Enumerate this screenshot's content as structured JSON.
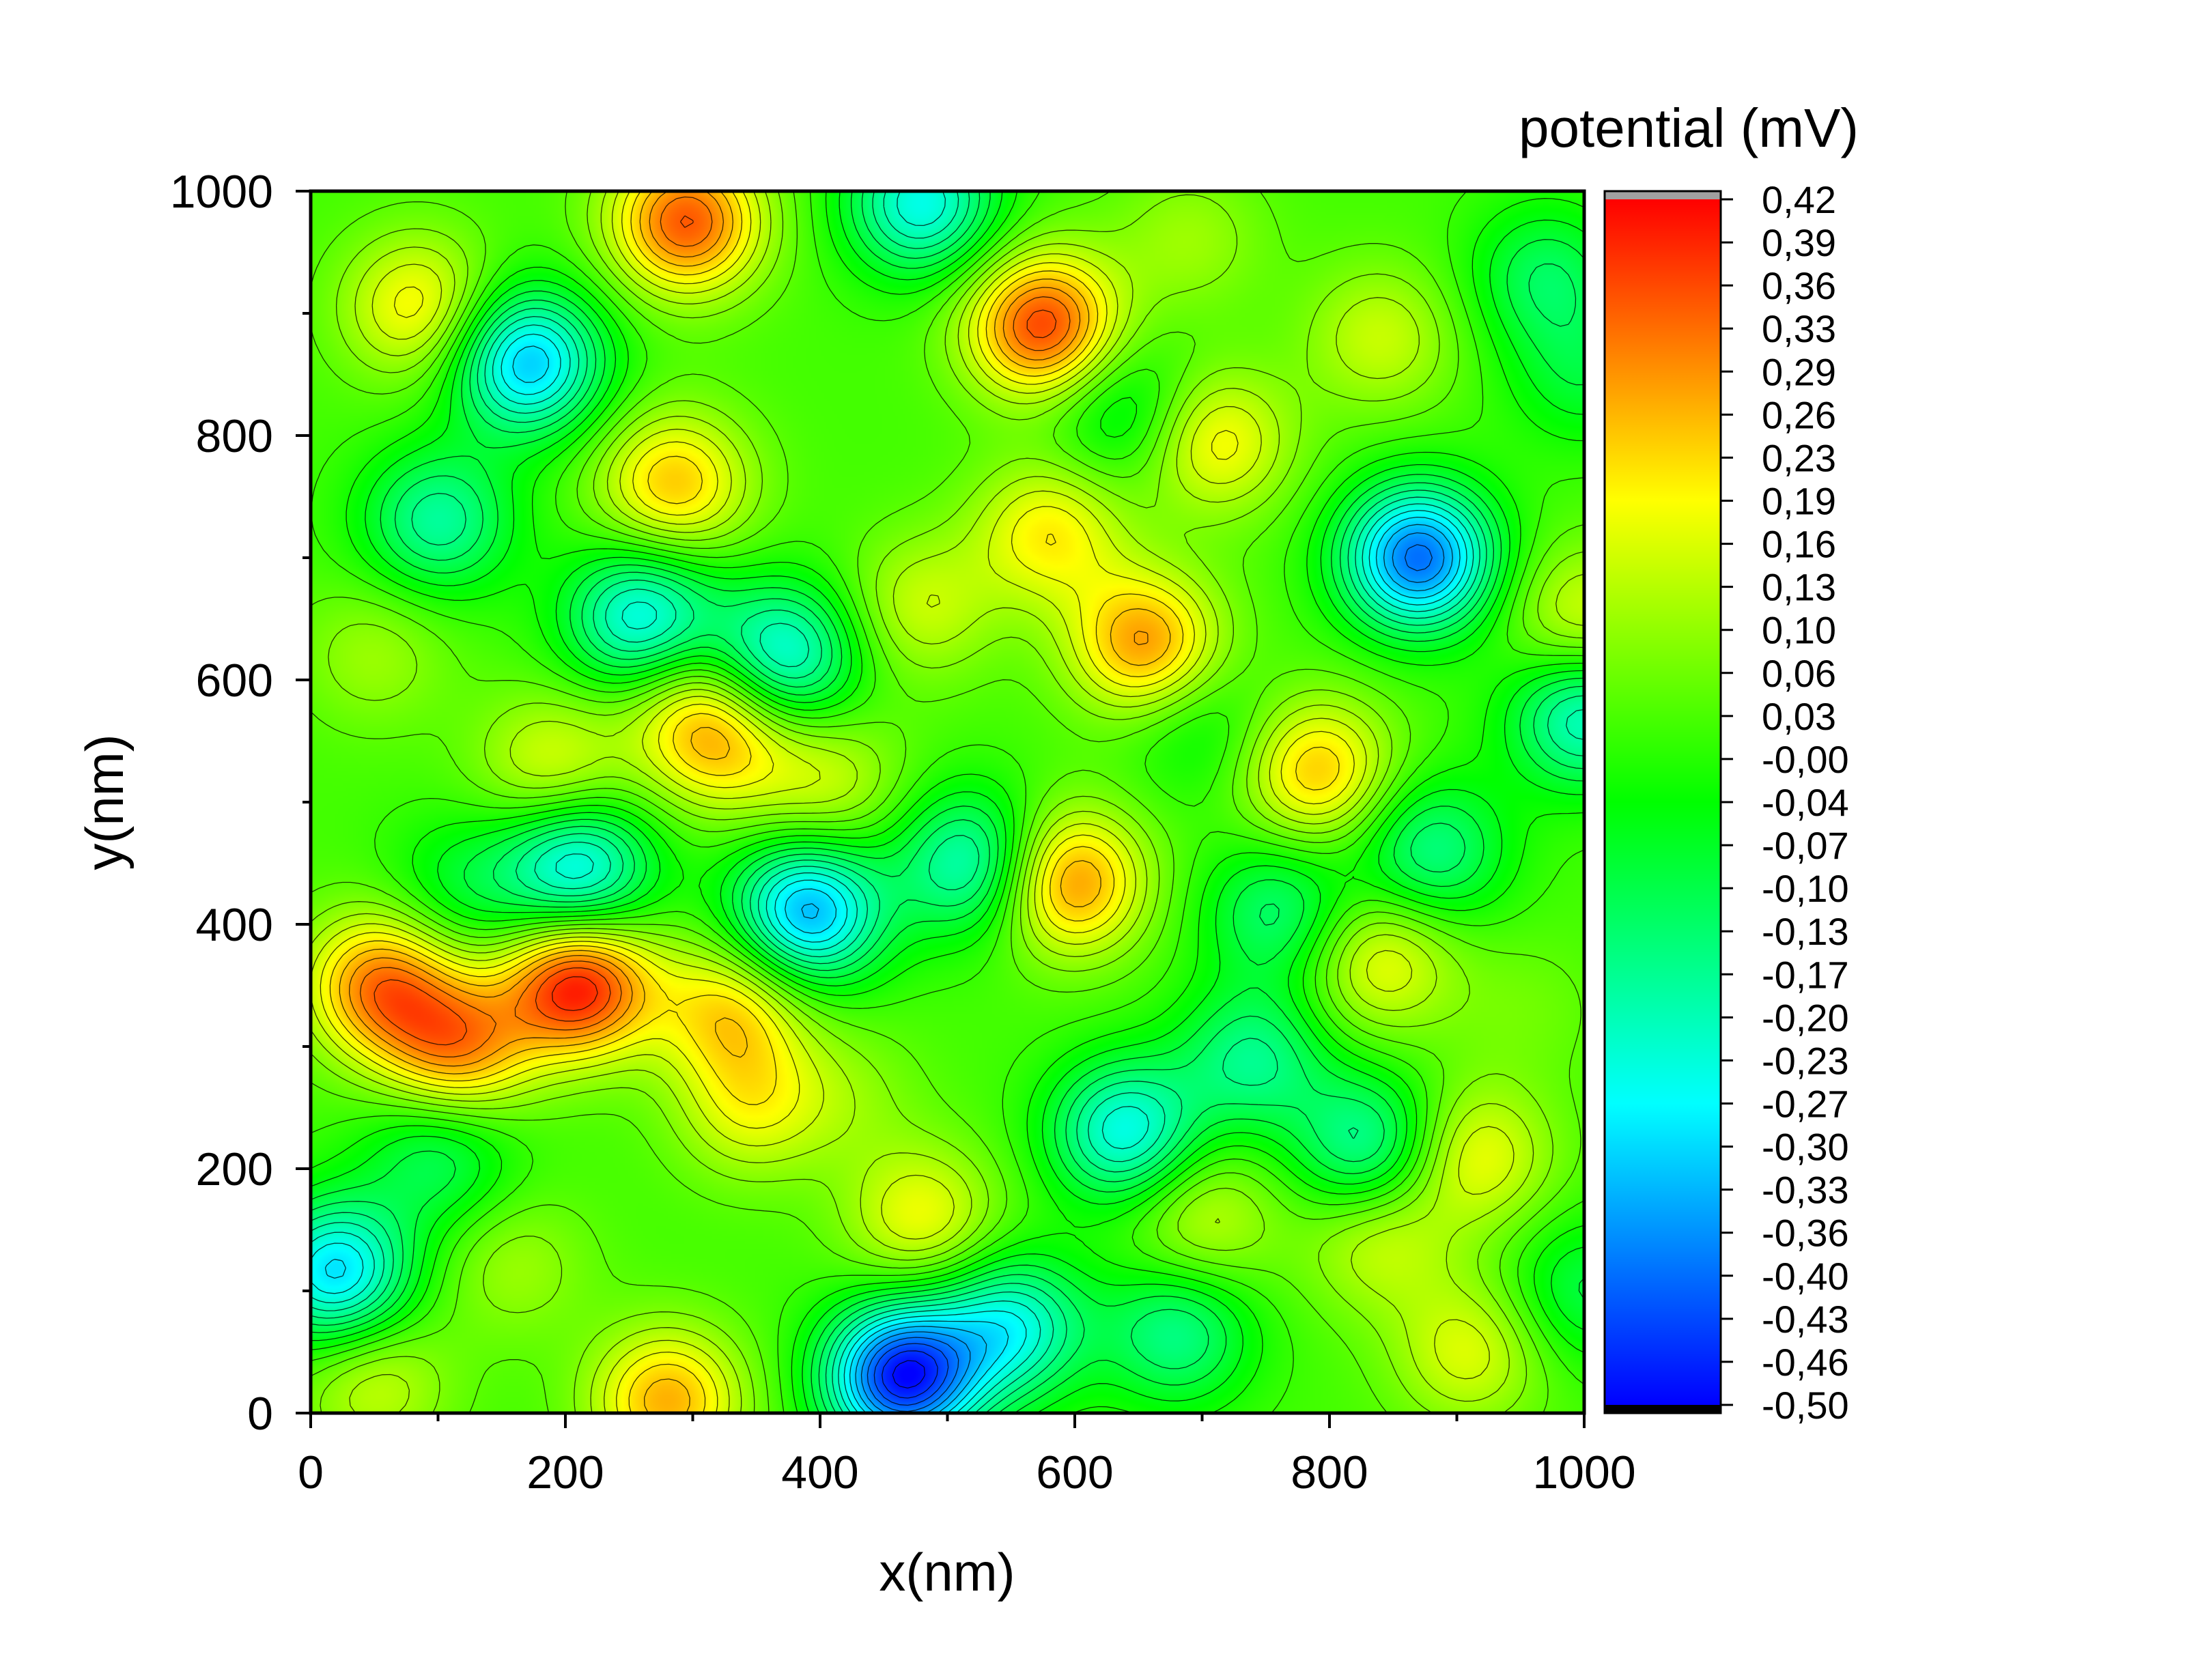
{
  "chart_data": {
    "type": "heatmap",
    "subtype": "contour",
    "xlabel": "x(nm)",
    "ylabel": "y(nm)",
    "xlim": [
      0,
      1000
    ],
    "ylim": [
      0,
      1000
    ],
    "x_ticks": [
      0,
      200,
      400,
      600,
      800,
      1000
    ],
    "y_ticks": [
      0,
      200,
      400,
      600,
      800,
      1000
    ],
    "colorbar": {
      "title": "potential (mV)",
      "range": [
        -0.5,
        0.42
      ],
      "tick_labels": [
        "0,42",
        "0,39",
        "0,36",
        "0,33",
        "0,29",
        "0,26",
        "0,23",
        "0,19",
        "0,16",
        "0,13",
        "0,10",
        "0,06",
        "0,03",
        "-0,00",
        "-0,04",
        "-0,07",
        "-0,10",
        "-0,13",
        "-0,17",
        "-0,20",
        "-0,23",
        "-0,27",
        "-0,30",
        "-0,33",
        "-0,36",
        "-0,40",
        "-0,43",
        "-0,46",
        "-0,50"
      ],
      "colors": [
        "#0000ff",
        "#00ffff",
        "#00ff00",
        "#ffff00",
        "#ff0000"
      ]
    },
    "base_value": 0.02,
    "extrema": [
      {
        "x": 465,
        "y": 30,
        "v": -0.48
      },
      {
        "x": 870,
        "y": 700,
        "v": -0.4
      },
      {
        "x": 170,
        "y": 860,
        "v": -0.32
      },
      {
        "x": 390,
        "y": 410,
        "v": -0.34
      },
      {
        "x": 210,
        "y": 445,
        "v": -0.27
      },
      {
        "x": 260,
        "y": 650,
        "v": -0.26
      },
      {
        "x": 370,
        "y": 620,
        "v": -0.25
      },
      {
        "x": 20,
        "y": 115,
        "v": -0.3
      },
      {
        "x": 640,
        "y": 230,
        "v": -0.25
      },
      {
        "x": 520,
        "y": 450,
        "v": -0.22
      },
      {
        "x": 550,
        "y": 70,
        "v": -0.24
      },
      {
        "x": 480,
        "y": 990,
        "v": -0.25
      },
      {
        "x": 1000,
        "y": 570,
        "v": -0.22
      },
      {
        "x": 100,
        "y": 730,
        "v": -0.18
      },
      {
        "x": 970,
        "y": 930,
        "v": -0.12
      },
      {
        "x": 760,
        "y": 410,
        "v": -0.14
      },
      {
        "x": 740,
        "y": 290,
        "v": -0.16
      },
      {
        "x": 830,
        "y": 220,
        "v": -0.18
      },
      {
        "x": 880,
        "y": 460,
        "v": -0.16
      },
      {
        "x": 680,
        "y": 65,
        "v": -0.16
      },
      {
        "x": 100,
        "y": 210,
        "v": -0.12
      },
      {
        "x": 640,
        "y": 820,
        "v": -0.1
      },
      {
        "x": 210,
        "y": 350,
        "v": 0.4
      },
      {
        "x": 575,
        "y": 890,
        "v": 0.36
      },
      {
        "x": 295,
        "y": 975,
        "v": 0.34
      },
      {
        "x": 55,
        "y": 350,
        "v": 0.3
      },
      {
        "x": 115,
        "y": 300,
        "v": 0.28
      },
      {
        "x": 595,
        "y": 435,
        "v": 0.3
      },
      {
        "x": 655,
        "y": 630,
        "v": 0.28
      },
      {
        "x": 790,
        "y": 525,
        "v": 0.24
      },
      {
        "x": 330,
        "y": 330,
        "v": 0.22
      },
      {
        "x": 320,
        "y": 550,
        "v": 0.22
      },
      {
        "x": 285,
        "y": 760,
        "v": 0.24
      },
      {
        "x": 85,
        "y": 905,
        "v": 0.2
      },
      {
        "x": 580,
        "y": 720,
        "v": 0.2
      },
      {
        "x": 710,
        "y": 795,
        "v": 0.2
      },
      {
        "x": 915,
        "y": 210,
        "v": 0.18
      },
      {
        "x": 840,
        "y": 370,
        "v": 0.18
      },
      {
        "x": 1000,
        "y": 650,
        "v": 0.16
      },
      {
        "x": 910,
        "y": 50,
        "v": 0.16
      },
      {
        "x": 480,
        "y": 160,
        "v": 0.18
      },
      {
        "x": 280,
        "y": 10,
        "v": 0.26
      },
      {
        "x": 190,
        "y": 530,
        "v": 0.16
      },
      {
        "x": 405,
        "y": 515,
        "v": 0.14
      },
      {
        "x": 480,
        "y": 660,
        "v": 0.14
      },
      {
        "x": 840,
        "y": 880,
        "v": 0.14
      },
      {
        "x": 700,
        "y": 160,
        "v": 0.14
      },
      {
        "x": 840,
        "y": 140,
        "v": 0.14
      },
      {
        "x": 50,
        "y": 620,
        "v": 0.1
      },
      {
        "x": 690,
        "y": 960,
        "v": 0.1
      },
      {
        "x": 50,
        "y": 25,
        "v": 0.14
      },
      {
        "x": 160,
        "y": 120,
        "v": 0.1
      },
      {
        "x": 300,
        "y": 590,
        "v": 0.12
      },
      {
        "x": 420,
        "y": 260,
        "v": 0.08
      },
      {
        "x": 950,
        "y": 330,
        "v": 0.06
      },
      {
        "x": 345,
        "y": 250,
        "v": 0.16
      },
      {
        "x": 1000,
        "y": 850,
        "v": -0.08
      },
      {
        "x": 1000,
        "y": 100,
        "v": -0.1
      },
      {
        "x": 700,
        "y": 560,
        "v": -0.06
      },
      {
        "x": 120,
        "y": 430,
        "v": -0.08
      }
    ]
  }
}
